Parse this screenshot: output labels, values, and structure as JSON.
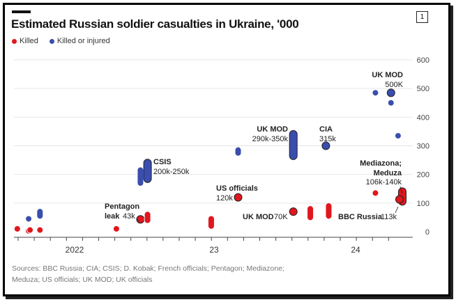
{
  "badge": "1",
  "chart_data": {
    "type": "scatter",
    "title": "Estimated Russian soldier casualties in Ukraine, '000",
    "legend": [
      {
        "name": "Killed",
        "color": "#e0171e"
      },
      {
        "name": "Killed or injured",
        "color": "#3a4eae"
      }
    ],
    "legend_placement": "top-left",
    "xlabel": "",
    "ylabel": "",
    "xlim": [
      2021.6,
      2024.45
    ],
    "ylim": [
      0,
      600
    ],
    "yticks": [
      0,
      100,
      200,
      300,
      400,
      500,
      600
    ],
    "ytick_labels": [
      "0",
      "100",
      "200",
      "300",
      "400",
      "500",
      "600"
    ],
    "xticks": [
      2022,
      2023,
      2024
    ],
    "xtick_labels": [
      "2022",
      "23",
      "24"
    ],
    "grid": true,
    "series": [
      {
        "name": "Killed",
        "color": "#e0171e",
        "points": [
          {
            "x": 2021.61,
            "y": 10
          },
          {
            "x": 2021.69,
            "y": 3
          },
          {
            "x": 2021.7,
            "y": 6
          },
          {
            "x": 2021.77,
            "y": 6
          },
          {
            "x": 2022.31,
            "y": 10
          },
          {
            "x": 2022.48,
            "y": 43,
            "highlight": true
          },
          {
            "x": 2022.53,
            "y": 40,
            "y2": 60
          },
          {
            "x": 2022.98,
            "y": 20,
            "y2": 45
          },
          {
            "x": 2023.17,
            "y": 120,
            "highlight": true
          },
          {
            "x": 2023.56,
            "y": 70,
            "highlight": true
          },
          {
            "x": 2023.68,
            "y": 50,
            "y2": 80
          },
          {
            "x": 2023.81,
            "y": 55,
            "y2": 90
          },
          {
            "x": 2024.14,
            "y": 135
          },
          {
            "x": 2024.33,
            "y": 106,
            "y2": 140,
            "highlight": true
          },
          {
            "x": 2024.31,
            "y": 113,
            "highlight": true
          }
        ]
      },
      {
        "name": "Killed or injured",
        "color": "#3a4eae",
        "points": [
          {
            "x": 2021.69,
            "y": 45
          },
          {
            "x": 2021.77,
            "y": 55,
            "y2": 70
          },
          {
            "x": 2022.48,
            "y": 170,
            "y2": 215
          },
          {
            "x": 2022.53,
            "y": 185,
            "y2": 240,
            "highlight": true
          },
          {
            "x": 2023.17,
            "y": 275,
            "y2": 285
          },
          {
            "x": 2023.56,
            "y": 265,
            "y2": 340,
            "highlight": true
          },
          {
            "x": 2023.79,
            "y": 300,
            "highlight": true
          },
          {
            "x": 2024.14,
            "y": 485
          },
          {
            "x": 2024.25,
            "y": 485,
            "highlight": true
          },
          {
            "x": 2024.25,
            "y": 450
          },
          {
            "x": 2024.3,
            "y": 335
          }
        ]
      }
    ],
    "annotations": [
      {
        "label": "CSIS",
        "value": "200k-250k"
      },
      {
        "label": "Pentagon",
        "label2": "leak",
        "value": "43k"
      },
      {
        "label": "US officials",
        "value": "120k"
      },
      {
        "label": "UK MOD",
        "value": "290k-350k"
      },
      {
        "label": "CIA",
        "value": "315k"
      },
      {
        "label": "UK MOD",
        "value": "500K"
      },
      {
        "label": "UK MOD",
        "value": "70K"
      },
      {
        "label": "Mediazona;",
        "label2": "Meduza",
        "value": "106k-140k"
      },
      {
        "label": "BBC Russia",
        "value": "113k"
      }
    ]
  },
  "sources": "Sources: BBC Russia; CIA; CSIS; D. Kobak; French officials; Pentagon; Mediazone; Meduza; US officials; UK MOD; UK officials"
}
